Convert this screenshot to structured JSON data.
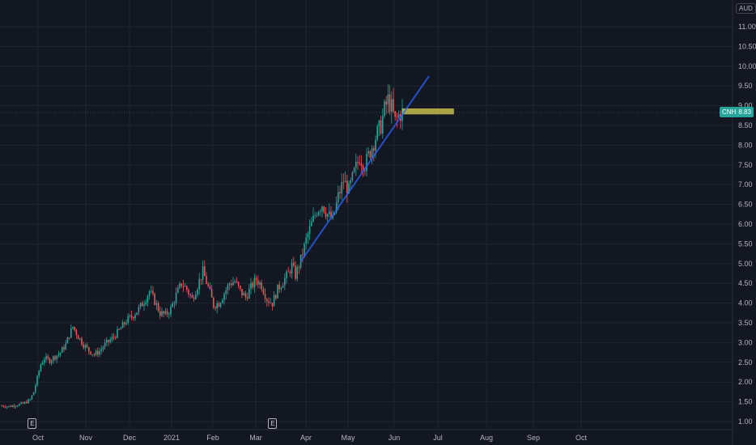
{
  "chart_data": {
    "type": "candlestick",
    "symbol": "CNH",
    "currency": "AUD",
    "last_price": "8.83",
    "x_ticks": [
      "Oct",
      "Nov",
      "Dec",
      "2021",
      "Feb",
      "Mar",
      "Apr",
      "May",
      "Jun",
      "Jul",
      "Aug",
      "Sep",
      "Oct"
    ],
    "y_ticks": [
      "1.00",
      "1.50",
      "2.00",
      "2.50",
      "3.00",
      "3.50",
      "4.00",
      "4.50",
      "5.00",
      "5.50",
      "6.00",
      "6.50",
      "7.00",
      "7.50",
      "8.00",
      "8.50",
      "9.00",
      "9.50",
      "10.00",
      "10.50",
      "11.00"
    ],
    "ylim": [
      0.8,
      11.3
    ],
    "price_path": [
      [
        0,
        1.4
      ],
      [
        4,
        1.38
      ],
      [
        8,
        1.42
      ],
      [
        12,
        1.45
      ],
      [
        16,
        1.55
      ],
      [
        18,
        1.75
      ],
      [
        20,
        2.1
      ],
      [
        22,
        2.45
      ],
      [
        24,
        2.6
      ],
      [
        27,
        2.55
      ],
      [
        30,
        2.65
      ],
      [
        33,
        2.75
      ],
      [
        36,
        2.95
      ],
      [
        38,
        3.2
      ],
      [
        40,
        3.4
      ],
      [
        43,
        3.15
      ],
      [
        46,
        2.95
      ],
      [
        49,
        2.8
      ],
      [
        52,
        2.7
      ],
      [
        55,
        2.78
      ],
      [
        58,
        2.95
      ],
      [
        62,
        3.1
      ],
      [
        66,
        3.3
      ],
      [
        70,
        3.55
      ],
      [
        74,
        3.7
      ],
      [
        77,
        3.85
      ],
      [
        80,
        4.05
      ],
      [
        83,
        4.3
      ],
      [
        86,
        4.05
      ],
      [
        89,
        3.75
      ],
      [
        92,
        3.7
      ],
      [
        95,
        3.85
      ],
      [
        98,
        4.2
      ],
      [
        101,
        4.5
      ],
      [
        104,
        4.35
      ],
      [
        107,
        4.1
      ],
      [
        110,
        4.45
      ],
      [
        113,
        4.8
      ],
      [
        116,
        4.4
      ],
      [
        119,
        3.95
      ],
      [
        122,
        4.0
      ],
      [
        125,
        4.25
      ],
      [
        128,
        4.5
      ],
      [
        131,
        4.55
      ],
      [
        134,
        4.3
      ],
      [
        137,
        4.15
      ],
      [
        140,
        4.4
      ],
      [
        143,
        4.6
      ],
      [
        146,
        4.45
      ],
      [
        149,
        4.1
      ],
      [
        152,
        4.0
      ],
      [
        155,
        4.35
      ],
      [
        158,
        4.55
      ],
      [
        161,
        4.75
      ],
      [
        163,
        4.95
      ],
      [
        165,
        4.7
      ],
      [
        168,
        5.1
      ],
      [
        171,
        5.6
      ],
      [
        174,
        6.0
      ],
      [
        177,
        6.35
      ],
      [
        180,
        6.5
      ],
      [
        183,
        6.25
      ],
      [
        186,
        6.1
      ],
      [
        189,
        6.7
      ],
      [
        192,
        7.1
      ],
      [
        195,
        6.85
      ],
      [
        198,
        7.3
      ],
      [
        201,
        7.7
      ],
      [
        204,
        7.5
      ],
      [
        207,
        7.85
      ],
      [
        210,
        8.2
      ],
      [
        213,
        8.5
      ],
      [
        215,
        8.9
      ],
      [
        217,
        9.15
      ],
      [
        219,
        8.95
      ],
      [
        221,
        8.6
      ],
      [
        223,
        8.75
      ],
      [
        225,
        8.83
      ]
    ],
    "trendline": {
      "start": {
        "index": 168,
        "price": 5.05
      },
      "end": {
        "index": 240,
        "price": 9.75
      }
    },
    "resistance_zone": {
      "start_index": 225,
      "end_index": 254,
      "price_low": 8.78,
      "price_high": 8.93,
      "color": "#c9bc4a"
    },
    "earnings_markers": [
      {
        "index": 17
      },
      {
        "index": 152
      }
    ],
    "colors": {
      "up": "#26a69a",
      "down": "#ef5350",
      "trendline": "#2962ff",
      "background": "#131722",
      "grid": "#1f2430"
    }
  }
}
